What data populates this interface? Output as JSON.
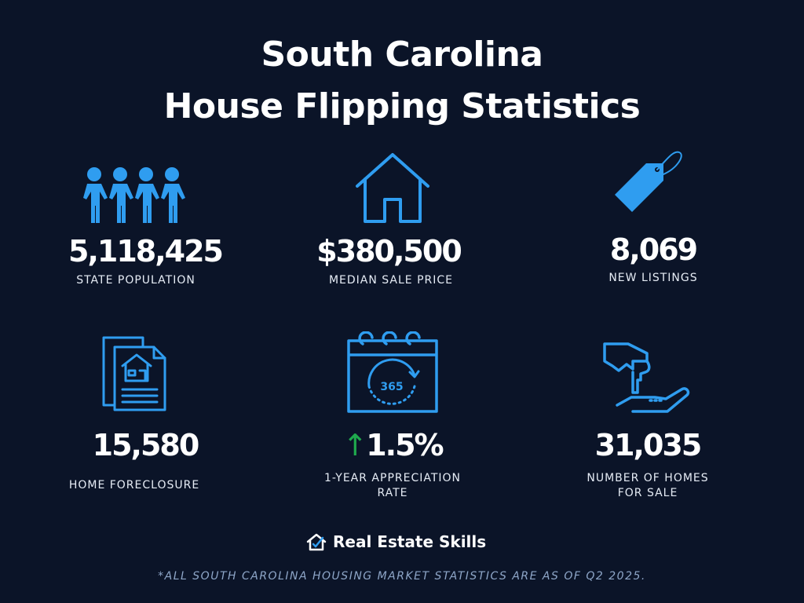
{
  "title": {
    "line1": "South Carolina",
    "line2": "House Flipping Statistics"
  },
  "stats": [
    {
      "value": "5,118,425",
      "label": "STATE POPULATION",
      "icon": "people-icon"
    },
    {
      "value": "$380,500",
      "label": "MEDIAN SALE PRICE",
      "icon": "house-icon"
    },
    {
      "value": "8,069",
      "label": "NEW LISTINGS",
      "icon": "price-tag-icon"
    },
    {
      "value": "15,580",
      "label": "HOME FORECLOSURE",
      "icon": "document-house-icon"
    },
    {
      "value": "1.5%",
      "label1": "1-YEAR APPRECIATION",
      "label2": "RATE",
      "icon": "calendar-365-icon",
      "calendar_text": "365",
      "arrow": "↑"
    },
    {
      "value": "31,035",
      "label1": "NUMBER OF HOMES",
      "label2": "FOR SALE",
      "icon": "key-hand-icon"
    }
  ],
  "logo": {
    "text": "Real Estate Skills"
  },
  "footnote": "*ALL SOUTH CAROLINA HOUSING MARKET STATISTICS ARE AS OF Q2 2025.",
  "colors": {
    "background": "#0b1428",
    "accent": "#2f9df0",
    "arrow": "#1faa4d"
  }
}
